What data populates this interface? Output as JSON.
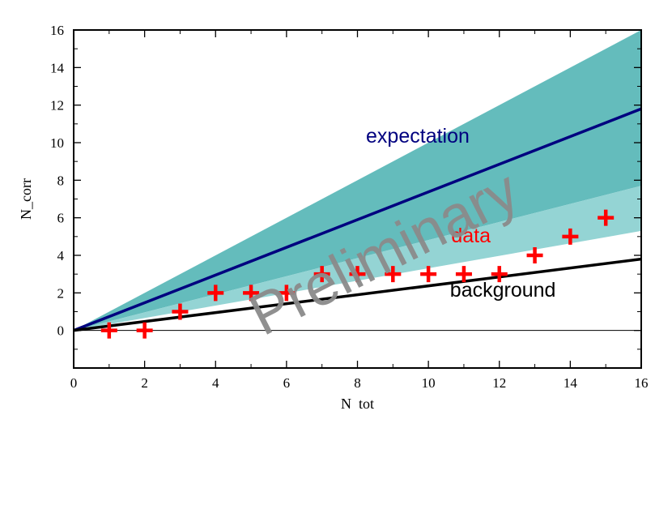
{
  "chart_data": {
    "type": "line",
    "xlabel": "N  tot",
    "ylabel": "N_corr",
    "xlim": [
      0,
      16
    ],
    "ylim": [
      -2,
      16
    ],
    "x_ticks": [
      0,
      2,
      4,
      6,
      8,
      10,
      12,
      14,
      16
    ],
    "y_ticks": [
      0,
      2,
      4,
      6,
      8,
      10,
      12,
      14,
      16
    ],
    "grid": false,
    "series": [
      {
        "kind": "band",
        "x": [
          0,
          16
        ],
        "low": [
          0,
          7.7
        ],
        "high": [
          0,
          16
        ],
        "color": "#64bcbc"
      },
      {
        "kind": "band",
        "x": [
          0,
          16
        ],
        "low": [
          0,
          5.3
        ],
        "high": [
          0,
          7.7
        ],
        "color": "#94d4d4"
      },
      {
        "kind": "line",
        "x": [
          0,
          16
        ],
        "y": [
          0,
          11.8
        ],
        "color": "#00007f"
      },
      {
        "kind": "line",
        "x": [
          0,
          16
        ],
        "y": [
          0,
          3.8
        ],
        "color": "#000000"
      },
      {
        "kind": "line",
        "x": [
          0,
          16
        ],
        "y": [
          0,
          0
        ],
        "color": "#000000"
      },
      {
        "kind": "scatter",
        "x": [
          1,
          2,
          3,
          4,
          5,
          6,
          7,
          8,
          9,
          10,
          11,
          12,
          13,
          14,
          15
        ],
        "y": [
          0,
          0,
          1,
          2,
          2,
          2,
          3,
          3,
          3,
          3,
          3,
          3,
          4,
          5,
          6
        ],
        "color": "#ff0000",
        "marker": "plus"
      }
    ],
    "annotations": [
      {
        "text": "expectation",
        "x": 9.7,
        "y": 10.0,
        "color": "#00007f"
      },
      {
        "text": "data",
        "x": 11.2,
        "y": 4.7,
        "color": "#ff0000"
      },
      {
        "text": "background",
        "x": 12.1,
        "y": 1.8,
        "color": "#000000"
      }
    ],
    "watermark": {
      "text": "Preliminary",
      "color": "#8a8a8a"
    }
  }
}
